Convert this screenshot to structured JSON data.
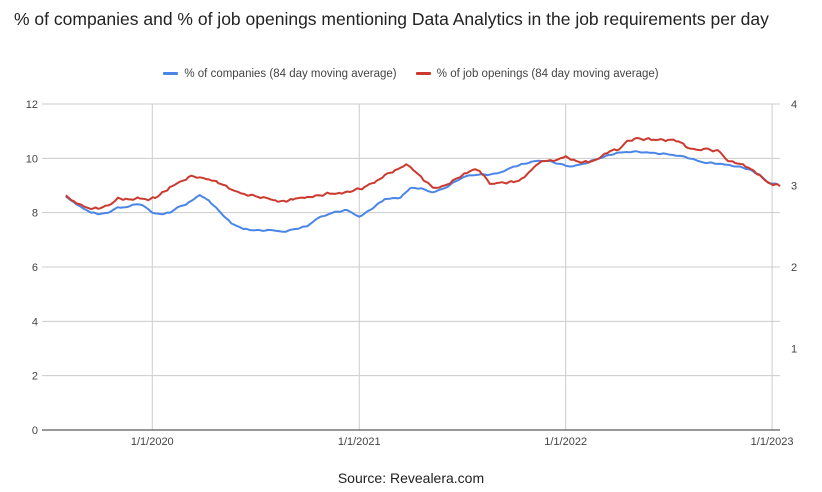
{
  "chart_data": {
    "type": "line",
    "title": "% of companies and % of job openings mentioning Data Analytics in the job requirements per day",
    "legend_position": "top",
    "grid": true,
    "x_axis": {
      "type": "date",
      "tick_labels": [
        "1/1/2020",
        "1/1/2021",
        "1/1/2022",
        "1/1/2023"
      ],
      "range": [
        "2019-06-20",
        "2023-01-15"
      ]
    },
    "y_left": {
      "ylim": [
        0,
        12
      ],
      "ticks": [
        "0",
        "2",
        "4",
        "6",
        "8",
        "10",
        "12"
      ]
    },
    "y_right": {
      "ylim": [
        0,
        4
      ],
      "ticks": [
        "1",
        "2",
        "3",
        "4"
      ]
    },
    "series": [
      {
        "name": "% of companies (84 day moving average)",
        "axis": "left",
        "color": "#4a86e8",
        "points": [
          [
            "2019-08-01",
            8.6
          ],
          [
            "2019-08-20",
            8.3
          ],
          [
            "2019-09-15",
            8.0
          ],
          [
            "2019-10-01",
            7.95
          ],
          [
            "2019-10-15",
            8.0
          ],
          [
            "2019-11-01",
            8.2
          ],
          [
            "2019-11-15",
            8.2
          ],
          [
            "2019-12-01",
            8.3
          ],
          [
            "2019-12-10",
            8.3
          ],
          [
            "2019-12-20",
            8.2
          ],
          [
            "2020-01-01",
            8.0
          ],
          [
            "2020-01-15",
            7.95
          ],
          [
            "2020-02-01",
            8.0
          ],
          [
            "2020-02-15",
            8.2
          ],
          [
            "2020-03-01",
            8.3
          ],
          [
            "2020-03-15",
            8.5
          ],
          [
            "2020-03-25",
            8.65
          ],
          [
            "2020-04-10",
            8.45
          ],
          [
            "2020-05-01",
            8.0
          ],
          [
            "2020-05-20",
            7.6
          ],
          [
            "2020-06-10",
            7.4
          ],
          [
            "2020-07-01",
            7.35
          ],
          [
            "2020-08-01",
            7.35
          ],
          [
            "2020-08-20",
            7.3
          ],
          [
            "2020-09-10",
            7.4
          ],
          [
            "2020-10-01",
            7.5
          ],
          [
            "2020-10-20",
            7.8
          ],
          [
            "2020-11-15",
            8.0
          ],
          [
            "2020-12-10",
            8.1
          ],
          [
            "2021-01-01",
            7.85
          ],
          [
            "2021-01-20",
            8.1
          ],
          [
            "2021-02-15",
            8.5
          ],
          [
            "2021-03-15",
            8.55
          ],
          [
            "2021-04-01",
            8.9
          ],
          [
            "2021-04-20",
            8.9
          ],
          [
            "2021-05-10",
            8.75
          ],
          [
            "2021-06-01",
            8.9
          ],
          [
            "2021-06-20",
            9.15
          ],
          [
            "2021-07-10",
            9.35
          ],
          [
            "2021-08-01",
            9.4
          ],
          [
            "2021-08-20",
            9.4
          ],
          [
            "2021-09-10",
            9.5
          ],
          [
            "2021-10-01",
            9.7
          ],
          [
            "2021-10-20",
            9.8
          ],
          [
            "2021-11-10",
            9.9
          ],
          [
            "2021-12-01",
            9.9
          ],
          [
            "2021-12-20",
            9.8
          ],
          [
            "2022-01-10",
            9.7
          ],
          [
            "2022-02-01",
            9.8
          ],
          [
            "2022-03-01",
            10.0
          ],
          [
            "2022-04-01",
            10.2
          ],
          [
            "2022-05-01",
            10.25
          ],
          [
            "2022-06-01",
            10.2
          ],
          [
            "2022-07-01",
            10.15
          ],
          [
            "2022-08-01",
            10.05
          ],
          [
            "2022-09-01",
            9.85
          ],
          [
            "2022-10-01",
            9.8
          ],
          [
            "2022-11-01",
            9.7
          ],
          [
            "2022-11-20",
            9.6
          ],
          [
            "2022-12-10",
            9.4
          ],
          [
            "2022-12-25",
            9.1
          ],
          [
            "2023-01-10",
            9.05
          ]
        ]
      },
      {
        "name": "% of job openings (84 day moving average)",
        "axis": "right",
        "color": "#cc3a2f",
        "points": [
          [
            "2019-08-01",
            2.88
          ],
          [
            "2019-08-20",
            2.78
          ],
          [
            "2019-09-15",
            2.71
          ],
          [
            "2019-10-01",
            2.72
          ],
          [
            "2019-10-20",
            2.77
          ],
          [
            "2019-11-01",
            2.85
          ],
          [
            "2019-11-20",
            2.83
          ],
          [
            "2019-12-10",
            2.84
          ],
          [
            "2019-12-25",
            2.82
          ],
          [
            "2020-01-10",
            2.86
          ],
          [
            "2020-02-01",
            2.98
          ],
          [
            "2020-02-20",
            3.05
          ],
          [
            "2020-03-10",
            3.12
          ],
          [
            "2020-03-25",
            3.1
          ],
          [
            "2020-04-15",
            3.06
          ],
          [
            "2020-05-01",
            3.02
          ],
          [
            "2020-05-20",
            2.95
          ],
          [
            "2020-06-10",
            2.9
          ],
          [
            "2020-07-01",
            2.87
          ],
          [
            "2020-07-20",
            2.85
          ],
          [
            "2020-08-10",
            2.8
          ],
          [
            "2020-08-25",
            2.8
          ],
          [
            "2020-09-10",
            2.84
          ],
          [
            "2020-10-01",
            2.86
          ],
          [
            "2020-10-20",
            2.88
          ],
          [
            "2020-11-10",
            2.9
          ],
          [
            "2020-12-01",
            2.9
          ],
          [
            "2020-12-20",
            2.93
          ],
          [
            "2021-01-10",
            2.98
          ],
          [
            "2021-02-01",
            3.06
          ],
          [
            "2021-02-20",
            3.15
          ],
          [
            "2021-03-10",
            3.2
          ],
          [
            "2021-03-25",
            3.26
          ],
          [
            "2021-04-10",
            3.17
          ],
          [
            "2021-04-25",
            3.06
          ],
          [
            "2021-05-15",
            2.97
          ],
          [
            "2021-06-01",
            3.0
          ],
          [
            "2021-06-20",
            3.08
          ],
          [
            "2021-07-10",
            3.15
          ],
          [
            "2021-07-25",
            3.2
          ],
          [
            "2021-08-10",
            3.12
          ],
          [
            "2021-08-20",
            3.02
          ],
          [
            "2021-09-10",
            3.04
          ],
          [
            "2021-10-01",
            3.04
          ],
          [
            "2021-10-20",
            3.1
          ],
          [
            "2021-11-10",
            3.25
          ],
          [
            "2021-11-25",
            3.3
          ],
          [
            "2021-12-10",
            3.3
          ],
          [
            "2022-01-01",
            3.36
          ],
          [
            "2022-01-20",
            3.3
          ],
          [
            "2022-02-10",
            3.28
          ],
          [
            "2022-03-01",
            3.33
          ],
          [
            "2022-03-20",
            3.42
          ],
          [
            "2022-04-05",
            3.44
          ],
          [
            "2022-04-20",
            3.55
          ],
          [
            "2022-05-10",
            3.58
          ],
          [
            "2022-06-01",
            3.56
          ],
          [
            "2022-07-01",
            3.56
          ],
          [
            "2022-07-20",
            3.54
          ],
          [
            "2022-08-05",
            3.46
          ],
          [
            "2022-08-20",
            3.44
          ],
          [
            "2022-09-10",
            3.45
          ],
          [
            "2022-10-01",
            3.41
          ],
          [
            "2022-10-15",
            3.3
          ],
          [
            "2022-11-01",
            3.27
          ],
          [
            "2022-11-20",
            3.22
          ],
          [
            "2022-12-10",
            3.13
          ],
          [
            "2022-12-25",
            3.04
          ],
          [
            "2023-01-15",
            2.99
          ]
        ]
      }
    ]
  },
  "source_text": "Source: Revealera.com"
}
